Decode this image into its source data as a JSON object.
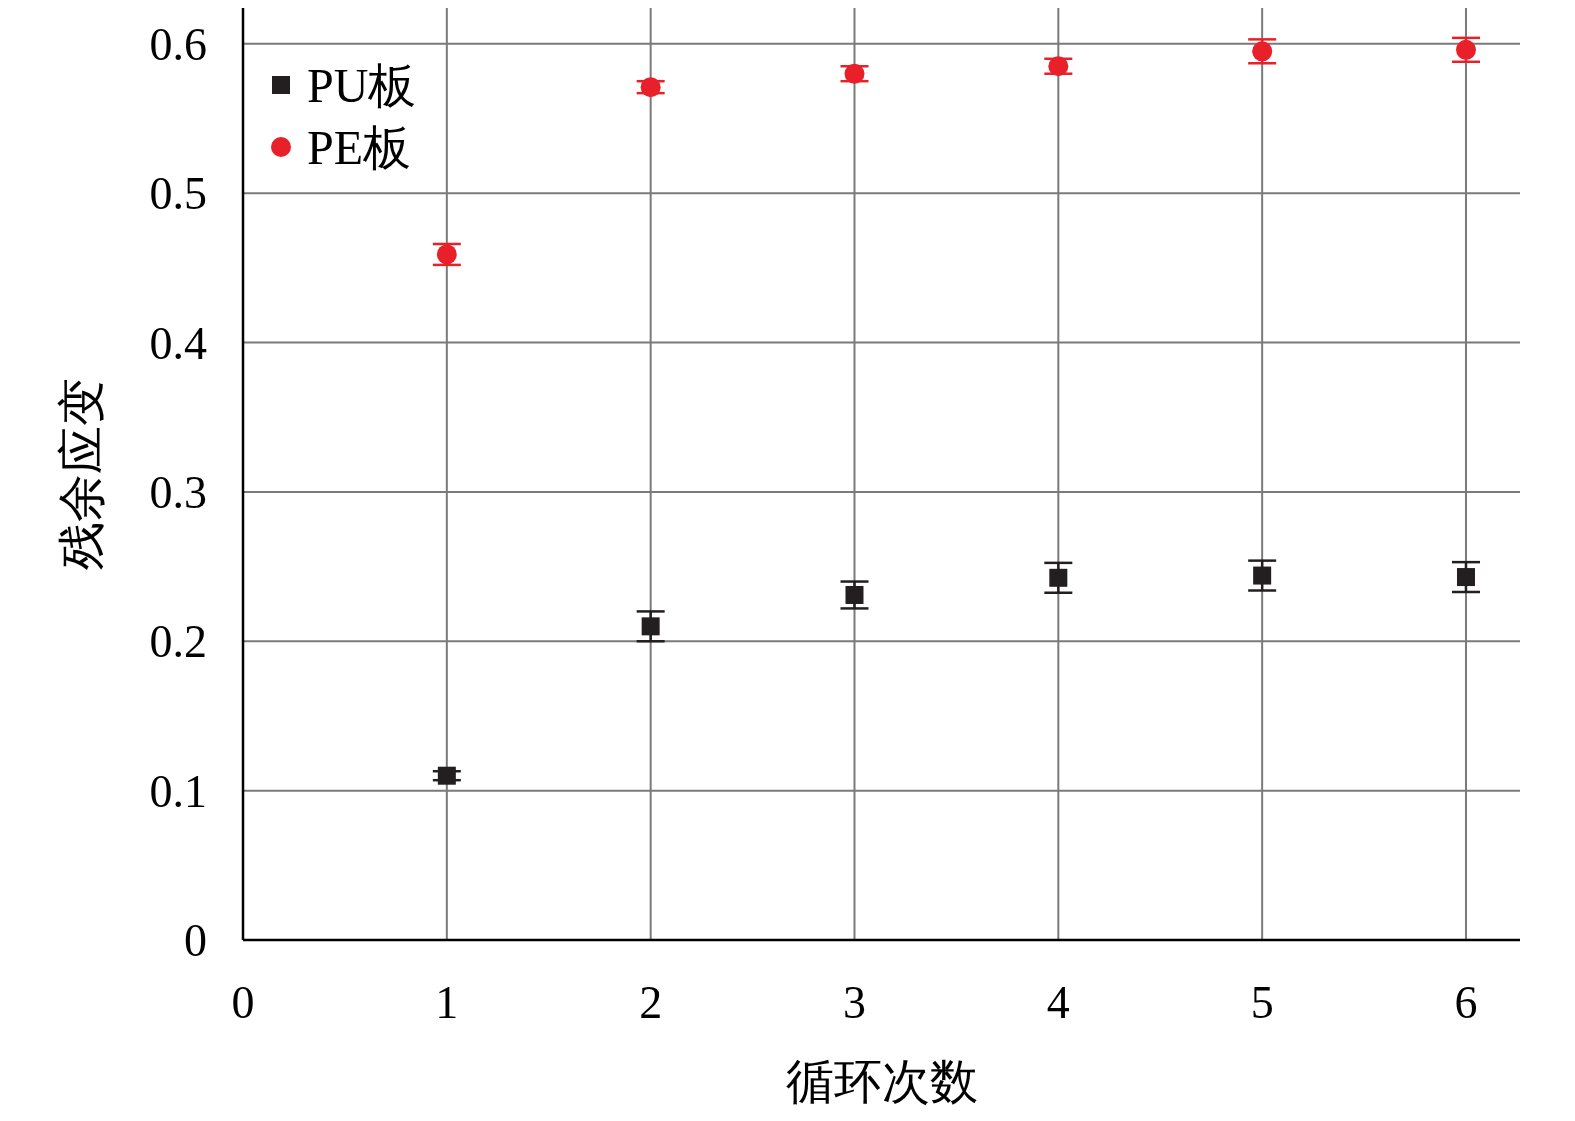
{
  "chart_data": {
    "type": "scatter",
    "xlabel": "循环次数",
    "ylabel": "残余应变",
    "xlim": [
      0,
      6.265
    ],
    "ylim": [
      0,
      0.624
    ],
    "xticks": [
      0,
      1,
      2,
      3,
      4,
      5,
      6
    ],
    "yticks": [
      0,
      0.1,
      0.2,
      0.3,
      0.4,
      0.5,
      0.6
    ],
    "grid": true,
    "legend": "top left",
    "x": [
      1,
      2,
      3,
      4,
      5,
      6
    ],
    "series": [
      {
        "name": "PU板",
        "color": "#231f20",
        "marker": "square",
        "values": [
          0.11,
          0.21,
          0.231,
          0.2425,
          0.244,
          0.243
        ],
        "errors": [
          0.003,
          0.01,
          0.009,
          0.01,
          0.01,
          0.01
        ]
      },
      {
        "name": "PE板",
        "color": "#e8202a",
        "marker": "circle",
        "values": [
          0.459,
          0.571,
          0.58,
          0.585,
          0.595,
          0.596
        ],
        "errors": [
          0.007,
          0.004,
          0.005,
          0.005,
          0.008,
          0.008
        ]
      }
    ]
  }
}
